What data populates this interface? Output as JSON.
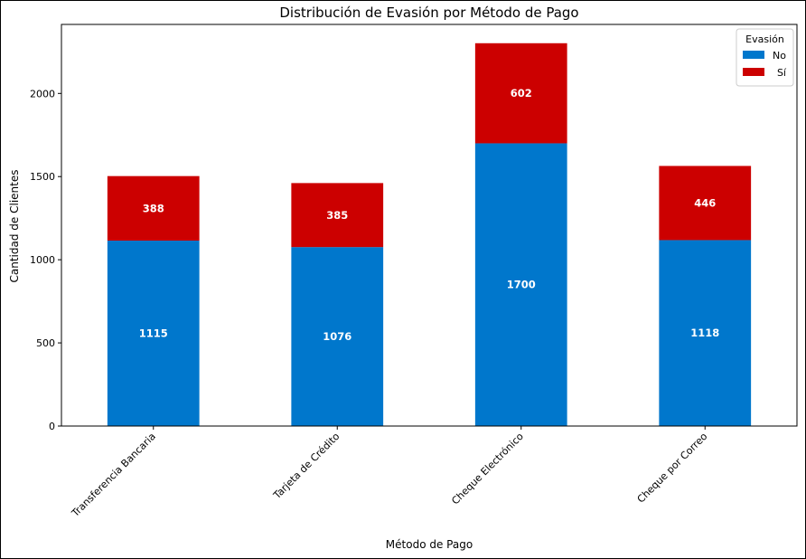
{
  "chart_data": {
    "type": "bar",
    "stacked": true,
    "title": "Distribución de Evasión por Método de Pago",
    "xlabel": "Método de Pago",
    "ylabel": "Cantidad de Clientes",
    "categories": [
      "Transferencia Bancaria",
      "Tarjeta de Crédito",
      "Cheque Electrónico",
      "Cheque por Correo"
    ],
    "series": [
      {
        "name": "No",
        "values": [
          1115,
          1076,
          1700,
          1118
        ],
        "color": "#0077cc"
      },
      {
        "name": "Sí",
        "values": [
          388,
          385,
          602,
          446
        ],
        "color": "#cc0000"
      }
    ],
    "ylim": [
      0,
      2415
    ],
    "yticks": [
      0,
      500,
      1000,
      1500,
      2000
    ],
    "grid": false,
    "legend": {
      "title": "Evasión",
      "placement": "top-right"
    }
  }
}
